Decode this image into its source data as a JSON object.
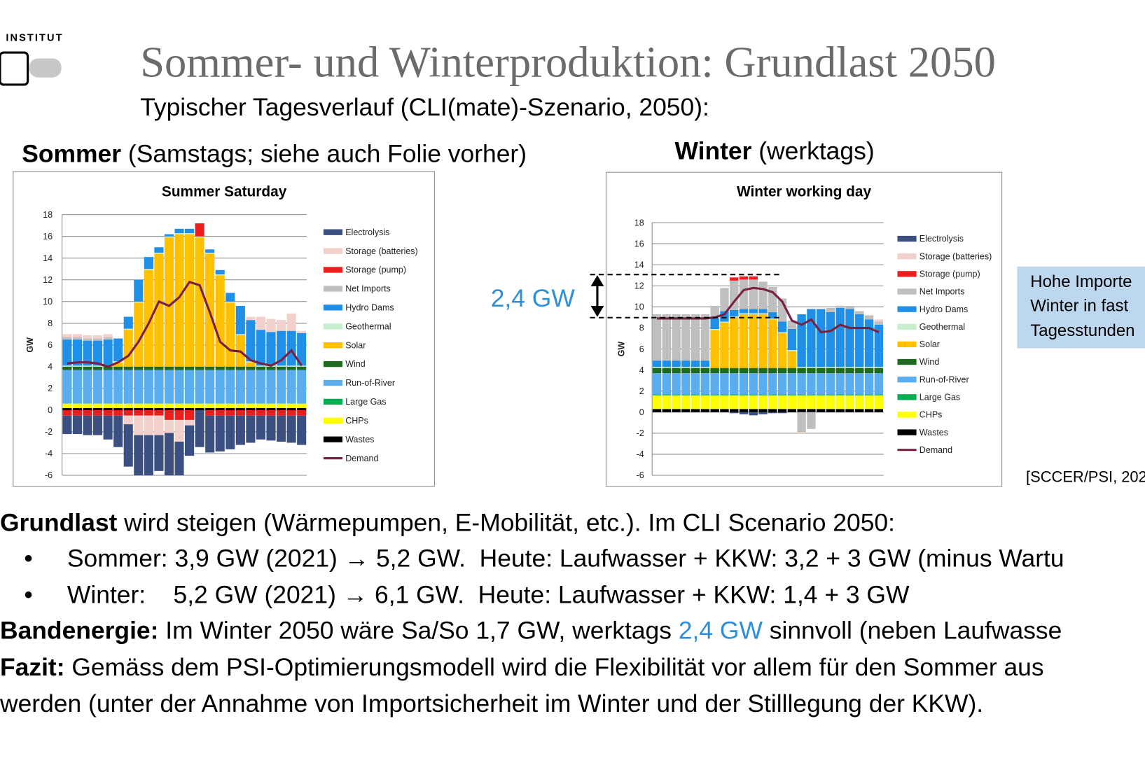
{
  "header": {
    "logo_text": "INSTITUT",
    "title": "Sommer- und Winterproduktion: Grundlast 2050",
    "subtitle": "Typischer Tagesverlauf (CLI(mate)-Szenario, 2050):"
  },
  "panels": {
    "summer_label": "Sommer",
    "summer_note": " (Samstags; siehe auch Folie vorher)",
    "winter_label": "Winter",
    "winter_note": " (werktags)"
  },
  "annotation": "2,4 GW",
  "callout": [
    "Hohe Importe",
    "Winter in fast",
    "Tagesstunden"
  ],
  "source": "[SCCER/PSI, 202",
  "body": {
    "line1": {
      "bold": "Grundlast",
      "rest": " wird steigen (Wärmepumpen, E-Mobilität, etc.). Im CLI Scenario 2050:"
    },
    "bullet": "•",
    "bullets": [
      "Sommer: 3,9 GW (2021) → 5,2 GW.  Heute: Laufwasser + KKW: 3,2 + 3 GW (minus Wartu",
      "Winter:    5,2 GW (2021) → 6,1 GW.  Heute: Laufwasser + KKW: 1,4 + 3 GW"
    ],
    "line4": {
      "bold": "Bandenergie:",
      "rest": " Im Winter 2050 wäre Sa/So 1,7 GW, werktags ",
      "highlight": "2,4 GW",
      "end": " sinnvoll (neben Laufwasse"
    },
    "line5": {
      "bold": "Fazit:",
      "rest": " Gemäss dem PSI-Optimierungsmodell wird die Flexibilität vor allem für den Sommer aus"
    },
    "line6": "werden (unter der Annahme von Importsicherheit im Winter und der Stilllegung der KKW)."
  },
  "chart_data": [
    {
      "type": "stacked_bar",
      "title": "Summer Saturday",
      "y_label": "GW",
      "ylim": [
        -6,
        18
      ],
      "yticks": [
        -6,
        -4,
        -2,
        0,
        2,
        4,
        6,
        8,
        10,
        12,
        14,
        16,
        18
      ],
      "grid": true,
      "series": [
        {
          "name": "Electrolysis",
          "color": "#3b4f80",
          "values": [
            -1.7,
            -1.7,
            -1.8,
            -1.8,
            -2.2,
            -2.9,
            -3.9,
            -3.7,
            -3.7,
            -3.3,
            -3.9,
            -3.1,
            -2.8,
            -3.4,
            -3.4,
            -3.3,
            -3.1,
            -2.7,
            -2.5,
            -2.2,
            -2.3,
            -2.4,
            -2.5,
            -2.7
          ]
        },
        {
          "name": "Storage (batteries)",
          "color": "#f2d0cc",
          "values": [
            0.3,
            0.3,
            0.3,
            0.3,
            0.3,
            0,
            -0.8,
            -1.8,
            -1.8,
            -1.8,
            -1.2,
            -2.0,
            -0.5,
            0,
            0,
            0,
            0,
            0,
            0.3,
            1.2,
            1.2,
            1.0,
            1.6,
            0.2
          ]
        },
        {
          "name": "Storage (pump)",
          "color": "#ee1c1c",
          "values": [
            -0.5,
            -0.5,
            -0.5,
            -0.5,
            -0.5,
            -0.5,
            -0.5,
            -0.5,
            -0.5,
            -0.5,
            -0.9,
            -0.9,
            -0.9,
            1.2,
            -0.5,
            -0.5,
            -0.5,
            -0.5,
            -0.5,
            -0.5,
            -0.5,
            -0.5,
            -0.5,
            -0.5
          ]
        },
        {
          "name": "Net Imports",
          "color": "#bfbfbf",
          "values": [
            0.2,
            0.2,
            0.2,
            0.2,
            0.2,
            0,
            0,
            0,
            0,
            0,
            0,
            0,
            0,
            0,
            0,
            0,
            0,
            0,
            0,
            0,
            0,
            0,
            0,
            0
          ]
        },
        {
          "name": "Hydro Dams",
          "color": "#1f8fe8",
          "values": [
            2.4,
            2.4,
            2.3,
            2.3,
            2.4,
            2.1,
            1.1,
            2.0,
            1.1,
            0.5,
            0.2,
            0.4,
            0.4,
            0,
            0.3,
            0.4,
            0.8,
            2.6,
            3.8,
            3.3,
            3.1,
            3.2,
            3.2,
            3.0
          ]
        },
        {
          "name": "Geothermal",
          "color": "#c6efce",
          "values": [
            0.1,
            0.1,
            0.1,
            0.1,
            0.1,
            0.1,
            0.1,
            0.1,
            0.1,
            0.1,
            0.1,
            0.1,
            0.1,
            0.1,
            0.1,
            0.1,
            0.1,
            0.1,
            0.1,
            0.1,
            0.1,
            0.1,
            0.1,
            0.1
          ]
        },
        {
          "name": "Solar",
          "color": "#ffc000",
          "values": [
            0,
            0,
            0,
            0,
            0,
            0.4,
            3.4,
            5.9,
            8.9,
            10.4,
            11.9,
            12.2,
            12.2,
            11.9,
            10.4,
            8.4,
            5.9,
            2.9,
            0.4,
            0,
            0,
            0,
            0,
            0
          ]
        },
        {
          "name": "Wind",
          "color": "#1e6b1e",
          "values": [
            0.3,
            0.3,
            0.3,
            0.3,
            0.3,
            0.3,
            0.3,
            0.3,
            0.3,
            0.3,
            0.3,
            0.3,
            0.3,
            0.3,
            0.3,
            0.3,
            0.3,
            0.3,
            0.3,
            0.3,
            0.3,
            0.3,
            0.3,
            0.3
          ]
        },
        {
          "name": "Run-of-River",
          "color": "#5aaef0",
          "values": [
            3.1,
            3.1,
            3.1,
            3.1,
            3.1,
            3.1,
            3.1,
            3.1,
            3.1,
            3.1,
            3.1,
            3.1,
            3.1,
            3.1,
            3.1,
            3.1,
            3.1,
            3.1,
            3.1,
            3.1,
            3.1,
            3.1,
            3.1,
            3.1
          ]
        },
        {
          "name": "Large Gas",
          "color": "#00b050",
          "values": [
            0,
            0,
            0,
            0,
            0,
            0,
            0,
            0,
            0,
            0,
            0,
            0,
            0,
            0,
            0,
            0,
            0,
            0,
            0,
            0,
            0,
            0,
            0,
            0
          ]
        },
        {
          "name": "CHPs",
          "color": "#ffff00",
          "values": [
            0.4,
            0.4,
            0.4,
            0.4,
            0.4,
            0.4,
            0.4,
            0.4,
            0.4,
            0.4,
            0.4,
            0.4,
            0.4,
            0.4,
            0.4,
            0.4,
            0.4,
            0.4,
            0.4,
            0.4,
            0.4,
            0.4,
            0.4,
            0.4
          ]
        },
        {
          "name": "Wastes",
          "color": "#000000",
          "values": [
            0.2,
            0.2,
            0.2,
            0.2,
            0.2,
            0.2,
            0.2,
            0.2,
            0.2,
            0.2,
            0.2,
            0.2,
            0.2,
            0.2,
            0.2,
            0.2,
            0.2,
            0.2,
            0.2,
            0.2,
            0.2,
            0.2,
            0.2,
            0.2
          ]
        },
        {
          "name": "Demand",
          "type": "line",
          "color": "#7a2040",
          "values": [
            4.3,
            4.4,
            4.4,
            4.3,
            4.0,
            4.4,
            5.0,
            6.3,
            8.0,
            10.0,
            9.6,
            10.4,
            11.8,
            11.5,
            9.0,
            6.3,
            5.5,
            5.4,
            4.6,
            4.3,
            4.1,
            4.6,
            5.5,
            4.1
          ]
        }
      ]
    },
    {
      "type": "stacked_bar",
      "title": "Winter working day",
      "y_label": "GW",
      "ylim": [
        -6,
        18
      ],
      "yticks": [
        -6,
        -4,
        -2,
        0,
        2,
        4,
        6,
        8,
        10,
        12,
        14,
        16,
        18
      ],
      "grid": true,
      "series": [
        {
          "name": "Electrolysis",
          "color": "#3b4f80",
          "values": [
            0,
            0,
            0,
            0,
            0,
            0,
            0,
            0,
            -0.1,
            -0.2,
            -0.3,
            -0.2,
            -0.1,
            -0.1,
            0,
            0,
            0,
            0,
            0,
            0,
            0,
            0,
            0,
            0
          ]
        },
        {
          "name": "Storage (batteries)",
          "color": "#f2d0cc",
          "values": [
            0,
            0,
            0,
            0,
            0,
            0,
            0,
            0,
            0,
            0,
            0,
            0,
            0,
            0,
            0,
            -0.1,
            0,
            0,
            0,
            0,
            0,
            0,
            0,
            0.2
          ]
        },
        {
          "name": "Storage (pump)",
          "color": "#ee1c1c",
          "values": [
            0,
            0,
            0,
            0,
            0,
            0,
            0,
            0,
            0.3,
            0.3,
            0.3,
            0,
            0,
            0,
            0,
            0,
            0,
            0,
            0,
            0,
            0,
            0,
            0,
            0
          ]
        },
        {
          "name": "Net Imports",
          "color": "#bfbfbf",
          "values": [
            4.4,
            4.4,
            4.4,
            4.4,
            4.4,
            4.4,
            1.2,
            2.2,
            2.8,
            2.8,
            2.8,
            2.6,
            2.4,
            2.2,
            0.8,
            -1.9,
            -1.6,
            0,
            0.4,
            0.2,
            0.3,
            0.3,
            0.4,
            0.3
          ]
        },
        {
          "name": "Hydro Dams",
          "color": "#1f8fe8",
          "values": [
            0.6,
            0.6,
            0.6,
            0.6,
            0.6,
            0.6,
            1.0,
            1.0,
            0.6,
            0.4,
            0.4,
            0.4,
            0.6,
            1.0,
            2.0,
            5.0,
            5.5,
            5.5,
            5.2,
            5.6,
            5.5,
            5.0,
            4.5,
            4.0
          ]
        },
        {
          "name": "Geothermal",
          "color": "#c6efce",
          "values": [
            0.1,
            0.1,
            0.1,
            0.1,
            0.1,
            0.1,
            0.1,
            0.1,
            0.1,
            0.1,
            0.1,
            0.1,
            0.1,
            0.1,
            0.1,
            0.1,
            0.1,
            0.1,
            0.1,
            0.1,
            0.1,
            0.1,
            0.1,
            0.1
          ]
        },
        {
          "name": "Solar",
          "color": "#ffc000",
          "values": [
            0,
            0,
            0,
            0,
            0,
            0,
            3.6,
            4.3,
            4.8,
            5.1,
            5.1,
            5.1,
            4.6,
            3.3,
            1.6,
            0,
            0,
            0,
            0,
            0,
            0,
            0,
            0,
            0
          ]
        },
        {
          "name": "Wind",
          "color": "#1e6b1e",
          "values": [
            0.5,
            0.5,
            0.5,
            0.5,
            0.5,
            0.5,
            0.5,
            0.5,
            0.5,
            0.5,
            0.5,
            0.5,
            0.5,
            0.5,
            0.5,
            0.5,
            0.5,
            0.5,
            0.5,
            0.5,
            0.5,
            0.5,
            0.5,
            0.5
          ]
        },
        {
          "name": "Run-of-River",
          "color": "#5aaef0",
          "values": [
            2.0,
            2.0,
            2.0,
            2.0,
            2.0,
            2.0,
            2.0,
            2.0,
            2.0,
            2.0,
            2.0,
            2.0,
            2.0,
            2.0,
            2.0,
            2.0,
            2.0,
            2.0,
            2.0,
            2.0,
            2.0,
            2.0,
            2.0,
            2.0
          ]
        },
        {
          "name": "Large Gas",
          "color": "#00b050",
          "values": [
            0.1,
            0.1,
            0.1,
            0.1,
            0.1,
            0.1,
            0.1,
            0.1,
            0.1,
            0.1,
            0.1,
            0.1,
            0.1,
            0.1,
            0.1,
            0.1,
            0.1,
            0.1,
            0.1,
            0.1,
            0.1,
            0.1,
            0.1,
            0.1
          ]
        },
        {
          "name": "CHPs",
          "color": "#ffff00",
          "values": [
            1.3,
            1.3,
            1.3,
            1.3,
            1.3,
            1.3,
            1.3,
            1.3,
            1.3,
            1.3,
            1.3,
            1.3,
            1.3,
            1.3,
            1.3,
            1.3,
            1.3,
            1.3,
            1.3,
            1.3,
            1.3,
            1.3,
            1.3,
            1.3
          ]
        },
        {
          "name": "Wastes",
          "color": "#000000",
          "values": [
            0.3,
            0.3,
            0.3,
            0.3,
            0.3,
            0.3,
            0.3,
            0.3,
            0.3,
            0.3,
            0.3,
            0.3,
            0.3,
            0.3,
            0.3,
            0.3,
            0.3,
            0.3,
            0.3,
            0.3,
            0.3,
            0.3,
            0.3,
            0.3
          ]
        },
        {
          "name": "Demand",
          "type": "line",
          "color": "#7a2040",
          "values": [
            8.9,
            8.9,
            8.9,
            8.9,
            8.9,
            8.9,
            9.0,
            9.3,
            10.5,
            11.6,
            11.8,
            11.7,
            11.4,
            10.5,
            8.7,
            8.3,
            8.8,
            7.6,
            7.7,
            8.3,
            8.0,
            8.0,
            8.0,
            7.6
          ]
        }
      ]
    }
  ]
}
